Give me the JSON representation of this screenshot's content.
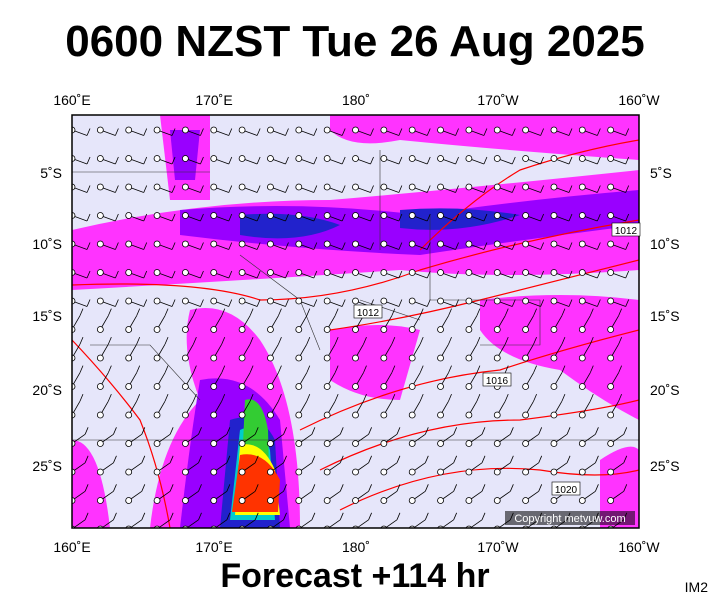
{
  "header": {
    "title": "0600 NZST Tue 26 Aug 2025"
  },
  "longitude_labels": [
    "160˚E",
    "170˚E",
    "180˚",
    "170˚W",
    "160˚W"
  ],
  "latitude_labels": [
    "5˚S",
    "10˚S",
    "15˚S",
    "20˚S",
    "25˚S"
  ],
  "isobar_labels": [
    "1012",
    "1012",
    "1016",
    "1020"
  ],
  "copyright": "Copyright metvuw.com",
  "footer": {
    "forecast": "Forecast +114 hr",
    "code": "IM2"
  }
}
